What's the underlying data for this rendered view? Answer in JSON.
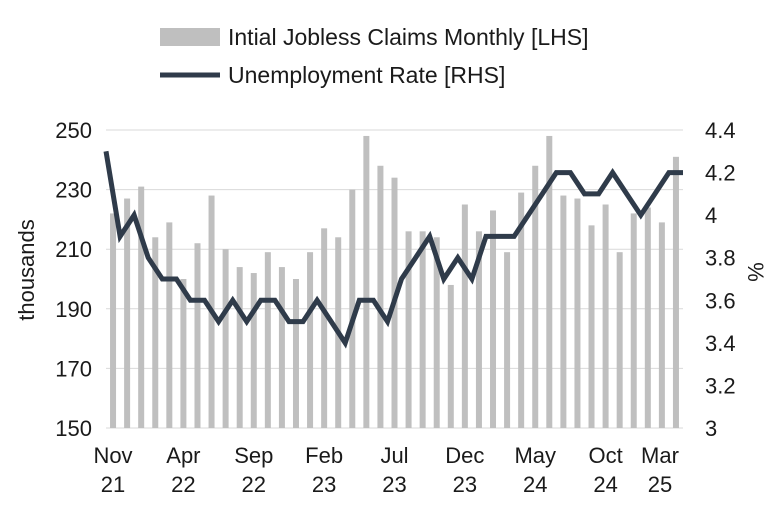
{
  "chart_data": {
    "type": "bar+line",
    "title": "",
    "legend": {
      "placement": "top",
      "items": [
        {
          "label": "Intial Jobless Claims Monthly [LHS]",
          "color": "#bfbfbf",
          "kind": "bar"
        },
        {
          "label": "Unemployment Rate [RHS]",
          "color": "#2f3b4a",
          "kind": "line"
        }
      ]
    },
    "y_left": {
      "label": "thousands",
      "ticks": [
        "250",
        "230",
        "210",
        "190",
        "170",
        "150"
      ],
      "range": [
        150,
        250
      ]
    },
    "y_right": {
      "label": "%",
      "ticks": [
        "4.4",
        "4.2",
        "4",
        "3.8",
        "3.6",
        "3.4",
        "3.2",
        "3"
      ],
      "range": [
        3.0,
        4.4
      ]
    },
    "x_ticks": [
      {
        "line1": "Nov",
        "line2": "21",
        "index": 0
      },
      {
        "line1": "Apr",
        "line2": "22",
        "index": 5
      },
      {
        "line1": "Sep",
        "line2": "22",
        "index": 10
      },
      {
        "line1": "Feb",
        "line2": "23",
        "index": 15
      },
      {
        "line1": "Jul",
        "line2": "23",
        "index": 20
      },
      {
        "line1": "Dec",
        "line2": "23",
        "index": 25
      },
      {
        "line1": "May",
        "line2": "24",
        "index": 30
      },
      {
        "line1": "Oct",
        "line2": "24",
        "index": 35
      },
      {
        "line1": "Mar",
        "line2": "25",
        "index": 40
      }
    ],
    "grid": true,
    "series": [
      {
        "name": "Intial Jobless Claims Monthly [LHS]",
        "type": "bar",
        "axis": "left",
        "values": [
          222,
          227,
          231,
          214,
          219,
          200,
          212,
          228,
          210,
          204,
          202,
          209,
          204,
          200,
          209,
          217,
          214,
          230,
          248,
          238,
          234,
          216,
          216,
          214,
          198,
          225,
          216,
          223,
          209,
          229,
          238,
          248,
          228,
          227,
          218,
          225,
          209,
          222,
          224,
          219,
          241
        ]
      },
      {
        "name": "Unemployment Rate [RHS]",
        "type": "line",
        "axis": "right",
        "values": [
          4.3,
          3.9,
          4.0,
          3.8,
          3.7,
          3.7,
          3.6,
          3.6,
          3.5,
          3.6,
          3.5,
          3.6,
          3.6,
          3.5,
          3.5,
          3.6,
          3.5,
          3.4,
          3.6,
          3.6,
          3.5,
          3.7,
          3.8,
          3.9,
          3.7,
          3.8,
          3.7,
          3.9,
          3.9,
          3.9,
          4.0,
          4.1,
          4.2,
          4.2,
          4.1,
          4.1,
          4.2,
          4.1,
          4.0,
          4.1,
          4.2,
          4.2
        ]
      }
    ]
  }
}
